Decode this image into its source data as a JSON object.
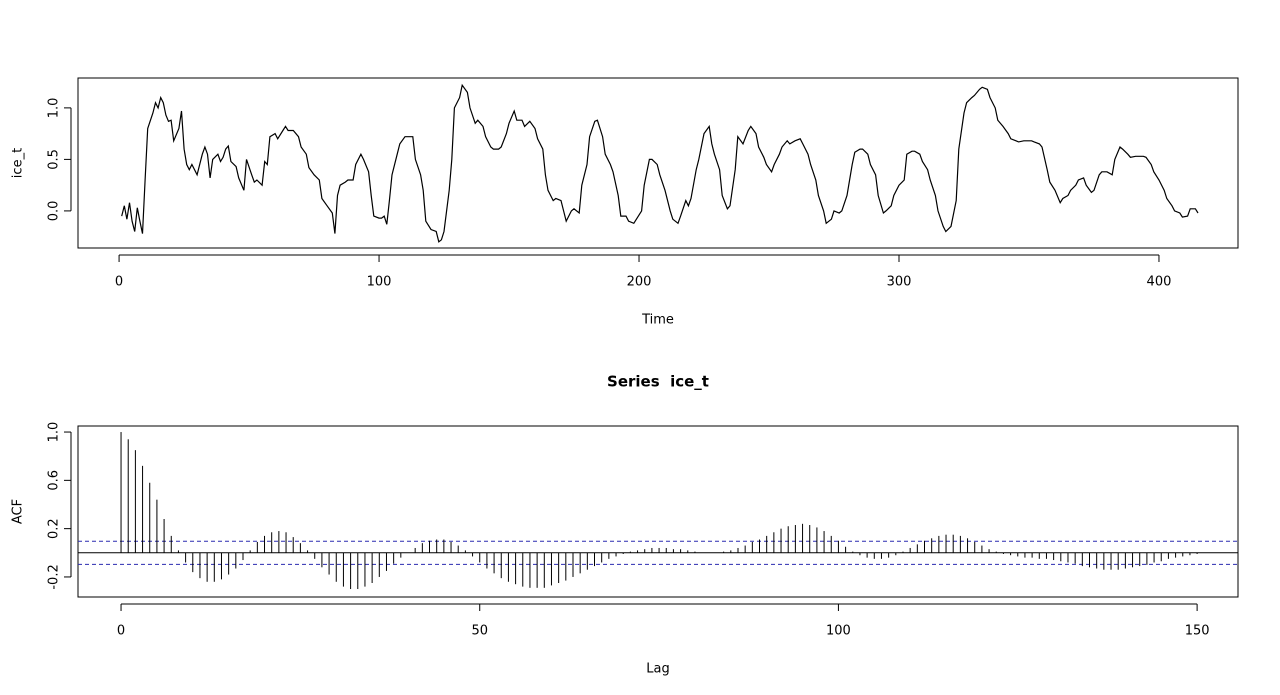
{
  "chart_data": [
    {
      "type": "line",
      "x_label": "Time",
      "y_label": "ice_t",
      "color": "#000000",
      "x": [
        1,
        2,
        3,
        4,
        5,
        6,
        7,
        8,
        9,
        10,
        11,
        13,
        14,
        15,
        16,
        17,
        18,
        19,
        20,
        21,
        23,
        24,
        25,
        26,
        27,
        28,
        30,
        32,
        33,
        34,
        35,
        36,
        38,
        39,
        40,
        41,
        42,
        43,
        45,
        46,
        48,
        49,
        51,
        52,
        53,
        55,
        56,
        57,
        58,
        60,
        61,
        63,
        64,
        65,
        67,
        69,
        70,
        72,
        73,
        75,
        77,
        78,
        80,
        82,
        83,
        84,
        85,
        87,
        88,
        90,
        91,
        93,
        94,
        96,
        97,
        98,
        100,
        101,
        102,
        103,
        104,
        105,
        107,
        108,
        110,
        112,
        113,
        114,
        116,
        117,
        118,
        120,
        122,
        123,
        124,
        125,
        127,
        128,
        129,
        131,
        132,
        134,
        135,
        137,
        138,
        140,
        141,
        143,
        144,
        146,
        147,
        149,
        150,
        152,
        153,
        155,
        156,
        158,
        160,
        161,
        163,
        164,
        165,
        167,
        168,
        170,
        171,
        172,
        174,
        175,
        177,
        178,
        180,
        181,
        183,
        184,
        186,
        187,
        189,
        190,
        192,
        193,
        195,
        196,
        198,
        199,
        201,
        202,
        204,
        205,
        207,
        208,
        210,
        212,
        213,
        215,
        216,
        218,
        219,
        220,
        222,
        223,
        225,
        227,
        228,
        229,
        231,
        232,
        234,
        235,
        237,
        238,
        240,
        242,
        243,
        245,
        246,
        248,
        249,
        251,
        252,
        254,
        255,
        257,
        258,
        260,
        262,
        263,
        265,
        266,
        268,
        269,
        271,
        272,
        274,
        275,
        277,
        278,
        280,
        282,
        283,
        285,
        286,
        288,
        289,
        291,
        292,
        294,
        295,
        297,
        298,
        300,
        302,
        303,
        305,
        306,
        308,
        309,
        311,
        312,
        314,
        315,
        317,
        318,
        320,
        322,
        323,
        325,
        326,
        328,
        329,
        331,
        332,
        334,
        335,
        337,
        338,
        340,
        342,
        343,
        345,
        346,
        348,
        349,
        351,
        352,
        354,
        355,
        357,
        358,
        360,
        362,
        363,
        365,
        366,
        368,
        369,
        371,
        372,
        374,
        375,
        377,
        378,
        380,
        382,
        383,
        385,
        386,
        388,
        389,
        391,
        392,
        394,
        395,
        397,
        398,
        400,
        402,
        403,
        405,
        406,
        408,
        409,
        411,
        412,
        414,
        415
      ],
      "values": [
        -0.05,
        0.05,
        -0.08,
        0.08,
        -0.1,
        -0.2,
        0.03,
        -0.1,
        -0.22,
        0.3,
        0.8,
        0.95,
        1.05,
        1.0,
        1.1,
        1.05,
        0.93,
        0.87,
        0.88,
        0.68,
        0.8,
        0.97,
        0.6,
        0.45,
        0.4,
        0.45,
        0.35,
        0.55,
        0.62,
        0.55,
        0.32,
        0.5,
        0.55,
        0.48,
        0.52,
        0.6,
        0.63,
        0.48,
        0.43,
        0.32,
        0.2,
        0.5,
        0.35,
        0.28,
        0.3,
        0.25,
        0.48,
        0.45,
        0.72,
        0.75,
        0.7,
        0.78,
        0.82,
        0.78,
        0.78,
        0.72,
        0.62,
        0.55,
        0.42,
        0.35,
        0.3,
        0.12,
        0.05,
        -0.02,
        -0.22,
        0.15,
        0.25,
        0.28,
        0.3,
        0.3,
        0.45,
        0.55,
        0.5,
        0.38,
        0.15,
        -0.05,
        -0.07,
        -0.07,
        -0.05,
        -0.13,
        0.1,
        0.35,
        0.55,
        0.65,
        0.72,
        0.72,
        0.72,
        0.5,
        0.35,
        0.2,
        -0.1,
        -0.18,
        -0.2,
        -0.3,
        -0.28,
        -0.2,
        0.2,
        0.5,
        1.0,
        1.1,
        1.22,
        1.15,
        1.0,
        0.85,
        0.88,
        0.82,
        0.72,
        0.62,
        0.6,
        0.6,
        0.62,
        0.75,
        0.85,
        0.97,
        0.88,
        0.88,
        0.82,
        0.87,
        0.8,
        0.7,
        0.6,
        0.35,
        0.2,
        0.1,
        0.12,
        0.1,
        0.0,
        -0.1,
        0.0,
        0.02,
        -0.02,
        0.25,
        0.45,
        0.72,
        0.87,
        0.88,
        0.72,
        0.55,
        0.45,
        0.38,
        0.15,
        -0.05,
        -0.05,
        -0.1,
        -0.12,
        -0.08,
        0.0,
        0.25,
        0.5,
        0.5,
        0.45,
        0.35,
        0.2,
        0.0,
        -0.08,
        -0.12,
        -0.05,
        0.1,
        0.05,
        0.12,
        0.4,
        0.5,
        0.75,
        0.82,
        0.65,
        0.55,
        0.4,
        0.15,
        0.02,
        0.05,
        0.4,
        0.72,
        0.65,
        0.78,
        0.82,
        0.75,
        0.62,
        0.52,
        0.45,
        0.38,
        0.45,
        0.55,
        0.62,
        0.68,
        0.65,
        0.68,
        0.7,
        0.65,
        0.55,
        0.45,
        0.3,
        0.15,
        0.0,
        -0.12,
        -0.08,
        0.0,
        -0.02,
        0.0,
        0.15,
        0.45,
        0.57,
        0.6,
        0.6,
        0.55,
        0.45,
        0.35,
        0.15,
        -0.02,
        0.0,
        0.05,
        0.15,
        0.25,
        0.3,
        0.55,
        0.58,
        0.58,
        0.55,
        0.48,
        0.4,
        0.3,
        0.15,
        0.0,
        -0.15,
        -0.2,
        -0.15,
        0.1,
        0.6,
        0.95,
        1.05,
        1.1,
        1.12,
        1.18,
        1.2,
        1.18,
        1.1,
        1.0,
        0.88,
        0.82,
        0.75,
        0.7,
        0.68,
        0.67,
        0.68,
        0.68,
        0.68,
        0.67,
        0.65,
        0.62,
        0.4,
        0.28,
        0.2,
        0.08,
        0.12,
        0.15,
        0.2,
        0.25,
        0.3,
        0.32,
        0.25,
        0.18,
        0.2,
        0.35,
        0.38,
        0.38,
        0.35,
        0.5,
        0.62,
        0.6,
        0.55,
        0.52,
        0.53,
        0.53,
        0.53,
        0.52,
        0.45,
        0.38,
        0.3,
        0.2,
        0.12,
        0.05,
        0.0,
        -0.02,
        -0.06,
        -0.05,
        0.02,
        0.02,
        -0.02
      ],
      "xlim": [
        -15.8,
        430.4
      ],
      "ylim": [
        -0.36,
        1.29
      ],
      "xticks": [
        0,
        100,
        200,
        300,
        400
      ],
      "yticks": [
        {
          "value": 0,
          "label": "0.0"
        },
        {
          "value": 0.5,
          "label": "0.5"
        },
        {
          "value": 1,
          "label": "1.0"
        }
      ]
    },
    {
      "type": "acf",
      "title": "Series  ice_t",
      "x_label": "Lag",
      "y_label": "ACF",
      "color": "#000000",
      "ci": 0.096,
      "ci_color": "#2b2bb0",
      "x": [
        0,
        1,
        2,
        3,
        4,
        5,
        6,
        7,
        8,
        9,
        10,
        11,
        12,
        13,
        14,
        15,
        16,
        17,
        18,
        19,
        20,
        21,
        22,
        23,
        24,
        25,
        26,
        27,
        28,
        29,
        30,
        31,
        32,
        33,
        34,
        35,
        36,
        37,
        38,
        39,
        40,
        41,
        42,
        43,
        44,
        45,
        46,
        47,
        48,
        49,
        50,
        51,
        52,
        53,
        54,
        55,
        56,
        57,
        58,
        59,
        60,
        61,
        62,
        63,
        64,
        65,
        66,
        67,
        68,
        69,
        70,
        71,
        72,
        73,
        74,
        75,
        76,
        77,
        78,
        79,
        80,
        81,
        82,
        83,
        84,
        85,
        86,
        87,
        88,
        89,
        90,
        91,
        92,
        93,
        94,
        95,
        96,
        97,
        98,
        99,
        100,
        101,
        102,
        103,
        104,
        105,
        106,
        107,
        108,
        109,
        110,
        111,
        112,
        113,
        114,
        115,
        116,
        117,
        118,
        119,
        120,
        121,
        122,
        123,
        124,
        125,
        126,
        127,
        128,
        129,
        130,
        131,
        132,
        133,
        134,
        135,
        136,
        137,
        138,
        139,
        140,
        141,
        142,
        143,
        144,
        145,
        146,
        147,
        148,
        149,
        150
      ],
      "values": [
        1.0,
        0.94,
        0.85,
        0.72,
        0.58,
        0.44,
        0.28,
        0.14,
        0.02,
        -0.08,
        -0.16,
        -0.21,
        -0.24,
        -0.24,
        -0.22,
        -0.18,
        -0.13,
        -0.06,
        0.02,
        0.09,
        0.14,
        0.17,
        0.18,
        0.17,
        0.13,
        0.08,
        0.02,
        -0.05,
        -0.12,
        -0.18,
        -0.24,
        -0.28,
        -0.3,
        -0.3,
        -0.28,
        -0.25,
        -0.2,
        -0.15,
        -0.09,
        -0.04,
        0.0,
        0.04,
        0.08,
        0.1,
        0.11,
        0.11,
        0.09,
        0.06,
        0.02,
        -0.03,
        -0.08,
        -0.13,
        -0.17,
        -0.21,
        -0.24,
        -0.26,
        -0.28,
        -0.29,
        -0.29,
        -0.29,
        -0.27,
        -0.25,
        -0.23,
        -0.2,
        -0.17,
        -0.14,
        -0.11,
        -0.08,
        -0.05,
        -0.03,
        -0.01,
        0.01,
        0.02,
        0.03,
        0.04,
        0.04,
        0.04,
        0.03,
        0.03,
        0.02,
        0.01,
        0.0,
        0.0,
        0.0,
        0.01,
        0.02,
        0.04,
        0.06,
        0.09,
        0.11,
        0.14,
        0.17,
        0.2,
        0.22,
        0.23,
        0.24,
        0.23,
        0.21,
        0.18,
        0.14,
        0.1,
        0.05,
        0.01,
        -0.02,
        -0.04,
        -0.05,
        -0.05,
        -0.04,
        -0.02,
        0.01,
        0.04,
        0.07,
        0.1,
        0.12,
        0.14,
        0.15,
        0.15,
        0.14,
        0.12,
        0.09,
        0.06,
        0.03,
        0.01,
        -0.01,
        -0.02,
        -0.03,
        -0.04,
        -0.04,
        -0.05,
        -0.05,
        -0.06,
        -0.07,
        -0.08,
        -0.09,
        -0.11,
        -0.12,
        -0.13,
        -0.14,
        -0.14,
        -0.14,
        -0.13,
        -0.12,
        -0.11,
        -0.1,
        -0.08,
        -0.07,
        -0.05,
        -0.04,
        -0.03,
        -0.02,
        -0.01
      ],
      "xlim": [
        -6.0,
        155.7
      ],
      "ylim": [
        -0.366,
        1.05
      ],
      "xticks": [
        0,
        50,
        100,
        150
      ],
      "yticks": [
        -0.2,
        0.2,
        0.6,
        {
          "value": 1,
          "label": "1.0"
        }
      ]
    }
  ]
}
